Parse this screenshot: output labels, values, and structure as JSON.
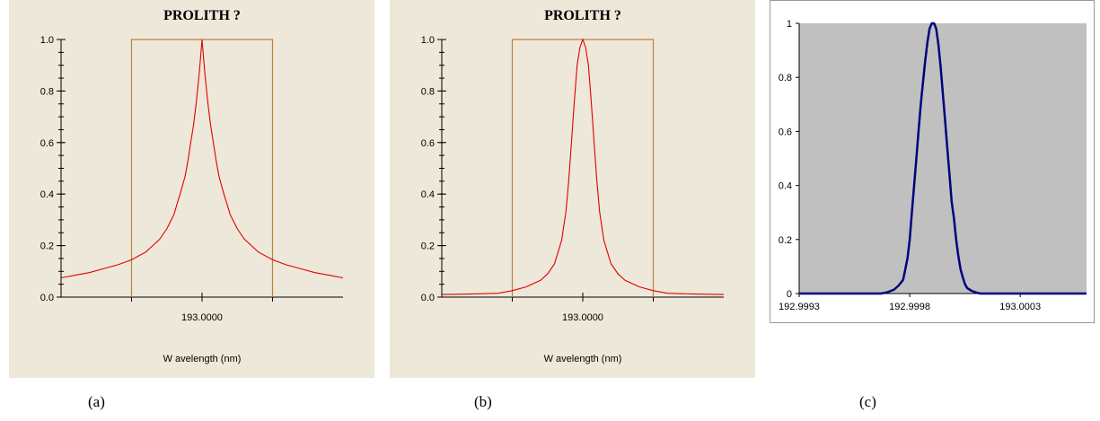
{
  "chart_data": [
    {
      "type": "line",
      "title": "PROLITH ?",
      "xlabel": "W avelength (nm)",
      "x_tick_labels": [
        "193.0000"
      ],
      "y_tick_labels": [
        "0.0",
        "0.2",
        "0.4",
        "0.6",
        "0.8",
        "1.0"
      ],
      "ylim": [
        0,
        1
      ],
      "xlim": [
        -1.0,
        1.0
      ],
      "grid": false,
      "colors": {
        "background": "#ede8d9",
        "curve": "#e00000",
        "window": "#c08040"
      },
      "window": {
        "x": [
          -0.5,
          0.5
        ],
        "height": 1.0
      },
      "series": [
        {
          "x": [
            -1.0,
            -0.9,
            -0.8,
            -0.7,
            -0.6,
            -0.5,
            -0.4,
            -0.35,
            -0.3,
            -0.25,
            -0.2,
            -0.15,
            -0.12,
            -0.1,
            -0.08,
            -0.06,
            -0.04,
            -0.02,
            0.0,
            0.02,
            0.04,
            0.06,
            0.08,
            0.1,
            0.12,
            0.15,
            0.2,
            0.25,
            0.3,
            0.35,
            0.4,
            0.5,
            0.6,
            0.7,
            0.8,
            0.9,
            1.0
          ],
          "y": [
            0.075,
            0.085,
            0.095,
            0.11,
            0.125,
            0.145,
            0.175,
            0.2,
            0.225,
            0.265,
            0.32,
            0.41,
            0.47,
            0.53,
            0.6,
            0.67,
            0.76,
            0.87,
            1.0,
            0.87,
            0.76,
            0.67,
            0.6,
            0.53,
            0.47,
            0.41,
            0.32,
            0.265,
            0.225,
            0.2,
            0.175,
            0.145,
            0.125,
            0.11,
            0.095,
            0.085,
            0.075
          ]
        }
      ]
    },
    {
      "type": "line",
      "title": "PROLITH ?",
      "xlabel": "W avelength (nm)",
      "x_tick_labels": [
        "193.0000"
      ],
      "y_tick_labels": [
        "0.0",
        "0.2",
        "0.4",
        "0.6",
        "0.8",
        "1.0"
      ],
      "ylim": [
        0,
        1
      ],
      "xlim": [
        -1.0,
        1.0
      ],
      "grid": false,
      "colors": {
        "background": "#ede8d9",
        "curve": "#e00000",
        "window": "#c08040"
      },
      "window": {
        "x": [
          -0.5,
          0.5
        ],
        "height": 1.0
      },
      "series": [
        {
          "x": [
            -1.0,
            -0.8,
            -0.6,
            -0.5,
            -0.4,
            -0.3,
            -0.25,
            -0.2,
            -0.15,
            -0.12,
            -0.1,
            -0.08,
            -0.06,
            -0.04,
            -0.02,
            0.0,
            0.02,
            0.04,
            0.06,
            0.08,
            0.1,
            0.12,
            0.15,
            0.2,
            0.25,
            0.3,
            0.4,
            0.5,
            0.6,
            0.8,
            1.0
          ],
          "y": [
            0.01,
            0.012,
            0.015,
            0.025,
            0.04,
            0.065,
            0.09,
            0.13,
            0.22,
            0.33,
            0.45,
            0.6,
            0.76,
            0.9,
            0.97,
            1.0,
            0.97,
            0.9,
            0.76,
            0.6,
            0.45,
            0.33,
            0.22,
            0.13,
            0.09,
            0.065,
            0.04,
            0.025,
            0.015,
            0.012,
            0.01
          ]
        }
      ]
    },
    {
      "type": "line",
      "title": "",
      "xlabel": "",
      "x_tick_labels": [
        "192.9993",
        "192.9998",
        "193.0003"
      ],
      "x_tick_values": [
        192.9993,
        192.9998,
        193.0003
      ],
      "y_tick_labels": [
        "0",
        "0.2",
        "0.4",
        "0.6",
        "0.8",
        "1"
      ],
      "ylim": [
        0,
        1
      ],
      "xlim": [
        192.9993,
        193.0006
      ],
      "grid": false,
      "colors": {
        "plot_background": "#c0c0c0",
        "curve": "#000080"
      },
      "series": [
        {
          "x": [
            192.9993,
            192.99967,
            192.9997,
            192.99973,
            192.99975,
            192.99977,
            192.99978,
            192.99979,
            192.9998,
            192.99981,
            192.99982,
            192.99983,
            192.99984,
            192.99985,
            192.99986,
            192.99987,
            192.99988,
            192.99989,
            192.9999,
            192.99991,
            192.99992,
            192.99993,
            192.99994,
            192.99995,
            192.99996,
            192.99997,
            192.99998,
            192.99999,
            193.0,
            193.00001,
            193.00002,
            193.00003,
            193.00004,
            193.00005,
            193.00006,
            193.00008,
            193.0001,
            193.00012,
            193.00015,
            193.0006
          ],
          "y": [
            0.0,
            0.0,
            0.005,
            0.015,
            0.03,
            0.05,
            0.09,
            0.13,
            0.2,
            0.3,
            0.4,
            0.5,
            0.6,
            0.7,
            0.78,
            0.86,
            0.93,
            0.98,
            1.0,
            1.0,
            0.98,
            0.92,
            0.84,
            0.74,
            0.64,
            0.54,
            0.44,
            0.34,
            0.28,
            0.2,
            0.14,
            0.09,
            0.06,
            0.035,
            0.02,
            0.01,
            0.004,
            0.0,
            0.0,
            0.0
          ]
        }
      ]
    }
  ],
  "captions": [
    "(a)",
    "(b)",
    "(c)"
  ]
}
